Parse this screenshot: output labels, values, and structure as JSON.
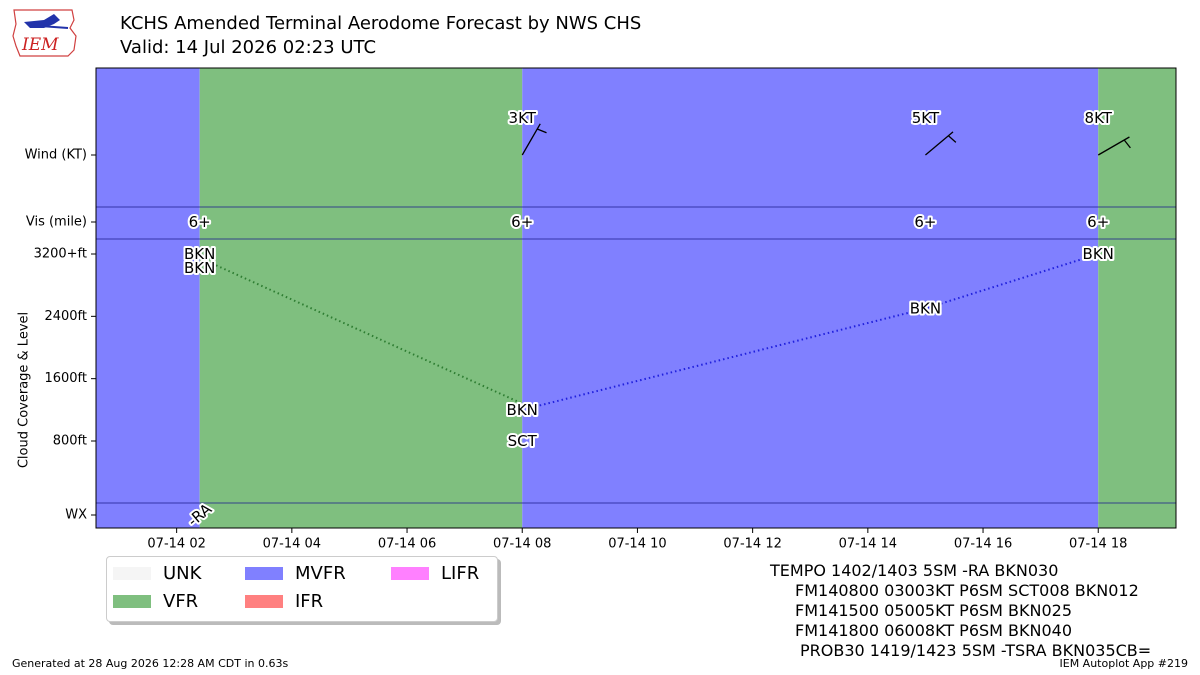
{
  "header": {
    "title": "KCHS Amended Terminal Aerodome Forecast by NWS CHS",
    "subtitle": "Valid: 14 Jul 2026 02:23 UTC",
    "logo_text": "IEM"
  },
  "chart_data": {
    "type": "timeline",
    "x_axis": {
      "range_hours": [
        0.6,
        19.35
      ],
      "ticks": [
        {
          "hour": 2,
          "label": "07-14 02"
        },
        {
          "hour": 4,
          "label": "07-14 04"
        },
        {
          "hour": 6,
          "label": "07-14 06"
        },
        {
          "hour": 8,
          "label": "07-14 08"
        },
        {
          "hour": 10,
          "label": "07-14 10"
        },
        {
          "hour": 12,
          "label": "07-14 12"
        },
        {
          "hour": 14,
          "label": "07-14 14"
        },
        {
          "hour": 16,
          "label": "07-14 16"
        },
        {
          "hour": 18,
          "label": "07-14 18"
        }
      ]
    },
    "y_axis": {
      "label": "Cloud Coverage & Level",
      "cloud_range_ft": [
        -800,
        3800
      ],
      "ticks": [
        {
          "value": 3200,
          "label": "3200+ft"
        },
        {
          "value": 2400,
          "label": "2400ft"
        },
        {
          "value": 1600,
          "label": "1600ft"
        },
        {
          "value": 800,
          "label": "800ft"
        }
      ],
      "row_labels": {
        "wind": "Wind (KT)",
        "vis": "Vis (mile)",
        "wx": "WX"
      }
    },
    "categories": [
      {
        "start": 0.6,
        "end": 2.4,
        "category": "MVFR"
      },
      {
        "start": 2.4,
        "end": 8.0,
        "category": "VFR"
      },
      {
        "start": 8.0,
        "end": 18.0,
        "category": "MVFR"
      },
      {
        "start": 18.0,
        "end": 19.35,
        "category": "VFR"
      }
    ],
    "category_colors": {
      "UNK": "#f5f5f5",
      "VFR": "#7fbf7f",
      "MVFR": "#8080ff",
      "IFR": "#ff8080",
      "LIFR": "#ff80ff"
    },
    "wind": [
      {
        "hour": 8,
        "label": "3KT",
        "direction": 30,
        "speed": 3
      },
      {
        "hour": 15,
        "label": "5KT",
        "direction": 50,
        "speed": 5
      },
      {
        "hour": 18,
        "label": "8KT",
        "direction": 60,
        "speed": 8
      }
    ],
    "visibility": [
      {
        "hour": 2.4,
        "label": "6+"
      },
      {
        "hour": 8,
        "label": "6+"
      },
      {
        "hour": 15,
        "label": "6+"
      },
      {
        "hour": 18,
        "label": "6+"
      }
    ],
    "cloud_labels": [
      {
        "hour": 2.4,
        "level": 3200,
        "label": "BKN"
      },
      {
        "hour": 2.4,
        "level": 3000,
        "label": "BKN"
      },
      {
        "hour": 8,
        "level": 1200,
        "label": "BKN"
      },
      {
        "hour": 8,
        "level": 800,
        "label": "SCT"
      },
      {
        "hour": 15,
        "level": 2500,
        "label": "BKN"
      },
      {
        "hour": 18,
        "level": 3200,
        "label": "BKN"
      }
    ],
    "cloud_lines": [
      {
        "color": "#2e7d32",
        "points": [
          [
            2.4,
            3150
          ],
          [
            8,
            1280
          ]
        ]
      },
      {
        "color": "#2020dd",
        "points": [
          [
            8,
            1200
          ],
          [
            15,
            2500
          ],
          [
            18,
            3200
          ]
        ]
      }
    ],
    "weather": [
      {
        "hour": 2.4,
        "label": "-RA"
      }
    ],
    "legend": [
      {
        "label": "UNK",
        "color": "#f5f5f5"
      },
      {
        "label": "VFR",
        "color": "#7fbf7f"
      },
      {
        "label": "MVFR",
        "color": "#8080ff"
      },
      {
        "label": "IFR",
        "color": "#ff8080"
      },
      {
        "label": "LIFR",
        "color": "#ff80ff"
      }
    ]
  },
  "taf_text": [
    "TEMPO 1402/1403 5SM -RA BKN030",
    "FM140800 03003KT P6SM SCT008 BKN012",
    "FM141500 05005KT P6SM BKN025",
    "FM141800 06008KT P6SM BKN040",
    "PROB30 1419/1423 5SM -TSRA BKN035CB="
  ],
  "footer": {
    "generated": "Generated at 28 Aug 2026 12:28 AM CDT in 0.63s",
    "app": "IEM Autoplot App #219"
  }
}
